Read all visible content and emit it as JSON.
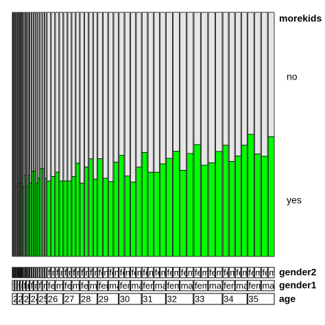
{
  "chart_data": {
    "type": "mosaic",
    "response_label": "morekids",
    "gender2_label": "gender2",
    "gender1_label": "gender1",
    "age_label": "age",
    "ages": [
      21,
      22,
      23,
      24,
      25,
      26,
      27,
      28,
      29,
      30,
      31,
      32,
      33,
      34,
      35
    ],
    "gender1_levels": [
      "female",
      "male"
    ],
    "gender2_levels": [
      "female",
      "male"
    ],
    "series": [
      {
        "name": "no",
        "color": "#e6e6e6",
        "values": [
          6,
          6,
          5,
          5,
          7,
          7,
          7,
          7,
          10,
          10,
          10,
          10,
          14,
          13,
          13,
          14,
          17,
          16,
          16,
          17,
          38,
          37,
          36,
          38,
          38,
          38,
          37,
          34,
          42,
          38,
          36,
          41,
          45,
          51,
          52,
          46,
          48,
          55,
          57,
          52,
          50,
          57,
          57,
          54,
          61,
          58,
          66,
          59,
          58,
          67,
          66,
          61,
          49,
          55,
          53,
          49,
          50,
          58,
          59,
          51
        ]
      },
      {
        "name": "yes",
        "color": "#00ff00",
        "values": [
          2,
          2,
          2,
          2,
          3,
          3,
          3,
          3,
          4,
          5,
          4,
          5,
          6,
          7,
          7,
          6,
          8,
          9,
          9,
          8,
          17,
          18,
          19,
          17,
          17,
          17,
          18,
          21,
          18,
          22,
          24,
          19,
          30,
          24,
          23,
          29,
          34,
          27,
          25,
          30,
          37,
          30,
          30,
          33,
          41,
          44,
          36,
          43,
          49,
          40,
          41,
          46,
          41,
          35,
          37,
          41,
          50,
          42,
          41,
          49
        ]
      }
    ]
  }
}
